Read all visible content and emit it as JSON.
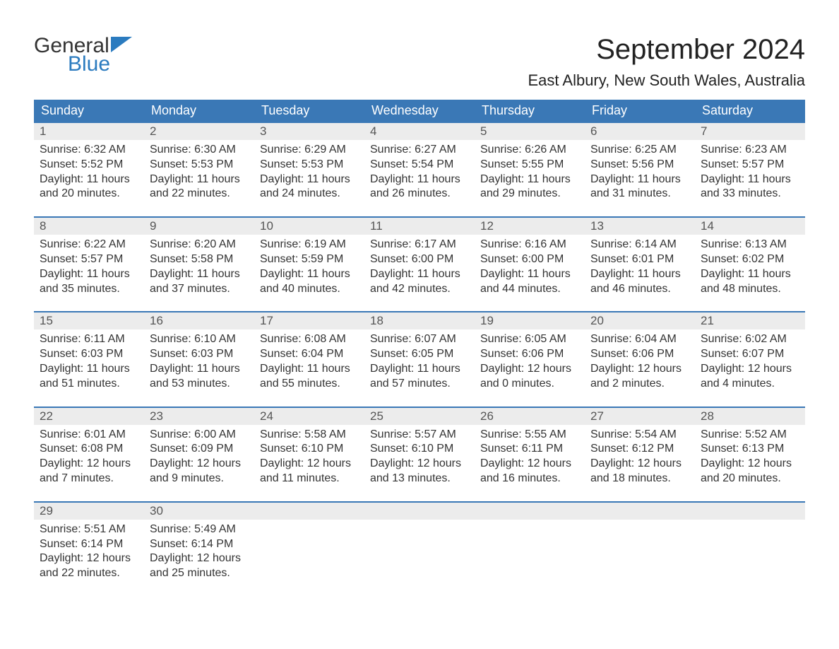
{
  "logo": {
    "word1": "General",
    "word2": "Blue",
    "icon_color": "#2b7bbf",
    "text_color1": "#333333",
    "text_color2": "#2b7bbf"
  },
  "title": "September 2024",
  "location": "East Albury, New South Wales, Australia",
  "colors": {
    "header_bg": "#3a78b6",
    "header_text": "#ffffff",
    "daynum_bg": "#ececec",
    "daynum_border": "#3a78b6",
    "body_text": "#333333",
    "day_text": "#555555",
    "page_bg": "#ffffff"
  },
  "fonts": {
    "title_size": 40,
    "location_size": 22,
    "header_size": 18,
    "daynum_size": 17,
    "data_size": 16
  },
  "columns": [
    "Sunday",
    "Monday",
    "Tuesday",
    "Wednesday",
    "Thursday",
    "Friday",
    "Saturday"
  ],
  "weeks": [
    [
      {
        "day": "1",
        "sunrise": "Sunrise: 6:32 AM",
        "sunset": "Sunset: 5:52 PM",
        "daylight": "Daylight: 11 hours and 20 minutes."
      },
      {
        "day": "2",
        "sunrise": "Sunrise: 6:30 AM",
        "sunset": "Sunset: 5:53 PM",
        "daylight": "Daylight: 11 hours and 22 minutes."
      },
      {
        "day": "3",
        "sunrise": "Sunrise: 6:29 AM",
        "sunset": "Sunset: 5:53 PM",
        "daylight": "Daylight: 11 hours and 24 minutes."
      },
      {
        "day": "4",
        "sunrise": "Sunrise: 6:27 AM",
        "sunset": "Sunset: 5:54 PM",
        "daylight": "Daylight: 11 hours and 26 minutes."
      },
      {
        "day": "5",
        "sunrise": "Sunrise: 6:26 AM",
        "sunset": "Sunset: 5:55 PM",
        "daylight": "Daylight: 11 hours and 29 minutes."
      },
      {
        "day": "6",
        "sunrise": "Sunrise: 6:25 AM",
        "sunset": "Sunset: 5:56 PM",
        "daylight": "Daylight: 11 hours and 31 minutes."
      },
      {
        "day": "7",
        "sunrise": "Sunrise: 6:23 AM",
        "sunset": "Sunset: 5:57 PM",
        "daylight": "Daylight: 11 hours and 33 minutes."
      }
    ],
    [
      {
        "day": "8",
        "sunrise": "Sunrise: 6:22 AM",
        "sunset": "Sunset: 5:57 PM",
        "daylight": "Daylight: 11 hours and 35 minutes."
      },
      {
        "day": "9",
        "sunrise": "Sunrise: 6:20 AM",
        "sunset": "Sunset: 5:58 PM",
        "daylight": "Daylight: 11 hours and 37 minutes."
      },
      {
        "day": "10",
        "sunrise": "Sunrise: 6:19 AM",
        "sunset": "Sunset: 5:59 PM",
        "daylight": "Daylight: 11 hours and 40 minutes."
      },
      {
        "day": "11",
        "sunrise": "Sunrise: 6:17 AM",
        "sunset": "Sunset: 6:00 PM",
        "daylight": "Daylight: 11 hours and 42 minutes."
      },
      {
        "day": "12",
        "sunrise": "Sunrise: 6:16 AM",
        "sunset": "Sunset: 6:00 PM",
        "daylight": "Daylight: 11 hours and 44 minutes."
      },
      {
        "day": "13",
        "sunrise": "Sunrise: 6:14 AM",
        "sunset": "Sunset: 6:01 PM",
        "daylight": "Daylight: 11 hours and 46 minutes."
      },
      {
        "day": "14",
        "sunrise": "Sunrise: 6:13 AM",
        "sunset": "Sunset: 6:02 PM",
        "daylight": "Daylight: 11 hours and 48 minutes."
      }
    ],
    [
      {
        "day": "15",
        "sunrise": "Sunrise: 6:11 AM",
        "sunset": "Sunset: 6:03 PM",
        "daylight": "Daylight: 11 hours and 51 minutes."
      },
      {
        "day": "16",
        "sunrise": "Sunrise: 6:10 AM",
        "sunset": "Sunset: 6:03 PM",
        "daylight": "Daylight: 11 hours and 53 minutes."
      },
      {
        "day": "17",
        "sunrise": "Sunrise: 6:08 AM",
        "sunset": "Sunset: 6:04 PM",
        "daylight": "Daylight: 11 hours and 55 minutes."
      },
      {
        "day": "18",
        "sunrise": "Sunrise: 6:07 AM",
        "sunset": "Sunset: 6:05 PM",
        "daylight": "Daylight: 11 hours and 57 minutes."
      },
      {
        "day": "19",
        "sunrise": "Sunrise: 6:05 AM",
        "sunset": "Sunset: 6:06 PM",
        "daylight": "Daylight: 12 hours and 0 minutes."
      },
      {
        "day": "20",
        "sunrise": "Sunrise: 6:04 AM",
        "sunset": "Sunset: 6:06 PM",
        "daylight": "Daylight: 12 hours and 2 minutes."
      },
      {
        "day": "21",
        "sunrise": "Sunrise: 6:02 AM",
        "sunset": "Sunset: 6:07 PM",
        "daylight": "Daylight: 12 hours and 4 minutes."
      }
    ],
    [
      {
        "day": "22",
        "sunrise": "Sunrise: 6:01 AM",
        "sunset": "Sunset: 6:08 PM",
        "daylight": "Daylight: 12 hours and 7 minutes."
      },
      {
        "day": "23",
        "sunrise": "Sunrise: 6:00 AM",
        "sunset": "Sunset: 6:09 PM",
        "daylight": "Daylight: 12 hours and 9 minutes."
      },
      {
        "day": "24",
        "sunrise": "Sunrise: 5:58 AM",
        "sunset": "Sunset: 6:10 PM",
        "daylight": "Daylight: 12 hours and 11 minutes."
      },
      {
        "day": "25",
        "sunrise": "Sunrise: 5:57 AM",
        "sunset": "Sunset: 6:10 PM",
        "daylight": "Daylight: 12 hours and 13 minutes."
      },
      {
        "day": "26",
        "sunrise": "Sunrise: 5:55 AM",
        "sunset": "Sunset: 6:11 PM",
        "daylight": "Daylight: 12 hours and 16 minutes."
      },
      {
        "day": "27",
        "sunrise": "Sunrise: 5:54 AM",
        "sunset": "Sunset: 6:12 PM",
        "daylight": "Daylight: 12 hours and 18 minutes."
      },
      {
        "day": "28",
        "sunrise": "Sunrise: 5:52 AM",
        "sunset": "Sunset: 6:13 PM",
        "daylight": "Daylight: 12 hours and 20 minutes."
      }
    ],
    [
      {
        "day": "29",
        "sunrise": "Sunrise: 5:51 AM",
        "sunset": "Sunset: 6:14 PM",
        "daylight": "Daylight: 12 hours and 22 minutes."
      },
      {
        "day": "30",
        "sunrise": "Sunrise: 5:49 AM",
        "sunset": "Sunset: 6:14 PM",
        "daylight": "Daylight: 12 hours and 25 minutes."
      },
      null,
      null,
      null,
      null,
      null
    ]
  ]
}
